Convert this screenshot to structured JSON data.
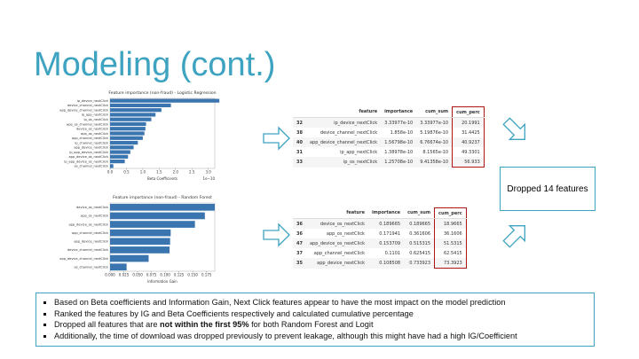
{
  "title": "Modeling (cont.)",
  "charts": [
    {
      "type": "barh",
      "title": "Feature importance (non-fraud) - Logistic Regression",
      "xlabel": "Beta Coefficients",
      "offset_label": "1e−10",
      "color": "#3a75b0",
      "categories": [
        "ip_device_nextClick",
        "device_channel_nextClick",
        "app_device_channel_nextClick",
        "ip_app_nextClick",
        "ip_os_nextClick",
        "app_os_channel_nextClick",
        "device_os_nextClick",
        "app_os_nextClick",
        "app_channel_nextClick",
        "ip_channel_nextClick",
        "app_device_nextClick",
        "ip_app_device_nextClick",
        "app_device_os_nextClick",
        "ip_app_device_os_nextClick",
        "os_channel_nextClick"
      ],
      "values": [
        3.34,
        1.86,
        1.57,
        1.39,
        1.26,
        1.1,
        1.08,
        1.05,
        1.0,
        0.85,
        0.72,
        0.62,
        0.55,
        0.45,
        0.1
      ],
      "xlim": [
        0,
        3.2
      ],
      "xticks": [
        {
          "value": 0,
          "label": "0.0"
        },
        {
          "value": 0.5,
          "label": "0.5"
        },
        {
          "value": 1,
          "label": "1.0"
        },
        {
          "value": 1.5,
          "label": "1.5"
        },
        {
          "value": 2,
          "label": "2.0"
        },
        {
          "value": 2.5,
          "label": "2.5"
        },
        {
          "value": 3,
          "label": "3.0"
        }
      ]
    },
    {
      "type": "barh",
      "title": "Feature importance (non-fraud) - Random Forest",
      "xlabel": "Information Gain",
      "color": "#3a75b0",
      "categories": [
        "device_os_nextClick",
        "app_os_nextClick",
        "app_device_os_nextClick",
        "app_channel_nextClick",
        "app_device_nextClick",
        "device_channel_nextClick",
        "app_device_channel_nextClick",
        "os_channel_nextClick"
      ],
      "values": [
        0.19,
        0.172,
        0.154,
        0.11,
        0.109,
        0.108,
        0.07,
        0.03
      ],
      "xlim": [
        0,
        0.19
      ],
      "xticks": [
        {
          "value": 0,
          "label": "0.000"
        },
        {
          "value": 0.025,
          "label": "0.025"
        },
        {
          "value": 0.05,
          "label": "0.050"
        },
        {
          "value": 0.075,
          "label": "0.075"
        },
        {
          "value": 0.1,
          "label": "0.100"
        },
        {
          "value": 0.125,
          "label": "0.125"
        },
        {
          "value": 0.15,
          "label": "0.150"
        },
        {
          "value": 0.175,
          "label": "0.175"
        }
      ]
    }
  ],
  "tables": [
    {
      "columns": [
        "feature",
        "importance",
        "cum_sum",
        "cum_perc"
      ],
      "rows": [
        [
          "32",
          "ip_device_nextClick",
          "3.33977e-10",
          "3.33977e-10",
          "20.1991"
        ],
        [
          "38",
          "device_channel_nextClick",
          "1.858e-10",
          "5.19876e-10",
          "31.4425"
        ],
        [
          "40",
          "app_device_channel_nextClick",
          "1.56798e-10",
          "6.76674e-10",
          "40.9237"
        ],
        [
          "31",
          "ip_app_nextClick",
          "1.38978e-10",
          "8.1565e-10",
          "49.3301"
        ],
        [
          "33",
          "ip_os_nextClick",
          "1.25708e-10",
          "9.41358e-10",
          "56.933"
        ]
      ]
    },
    {
      "columns": [
        "feature",
        "importance",
        "cum_sum",
        "cum_perc"
      ],
      "rows": [
        [
          "36",
          "device_os_nextClick",
          "0.189665",
          "0.189665",
          "18.9665"
        ],
        [
          "36",
          "app_os_nextClick",
          "0.171941",
          "0.361606",
          "36.1606"
        ],
        [
          "47",
          "app_device_os_nextClick",
          "0.153709",
          "0.515315",
          "51.5315"
        ],
        [
          "37",
          "app_channel_nextClick",
          "0.1101",
          "0.625415",
          "62.5415"
        ],
        [
          "35",
          "app_device_nextClick",
          "0.108508",
          "0.733923",
          "73.3923"
        ]
      ]
    }
  ],
  "callout": "Dropped 14 features",
  "bullets": [
    [
      "Based on Beta coefficients and Information Gain, Next Click features appear to have the most impact on the model prediction"
    ],
    [
      "Ranked the features by IG and Beta Coefficients respectively and calculated cumulative percentage"
    ],
    [
      "Dropped all features that are ",
      "not within the first 95%",
      " for both Random Forest and Logit"
    ],
    [
      "Additionally, the time of download was dropped previously to prevent leakage, although this might have had a high IG/Coefficient"
    ]
  ]
}
